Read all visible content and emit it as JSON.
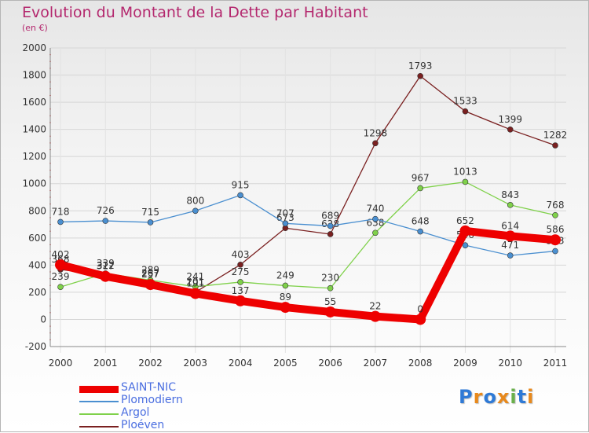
{
  "title": "Evolution du Montant de la Dette par Habitant",
  "subtitle": "(en €)",
  "logo": {
    "text": "Proxiti",
    "colors": [
      "#2f7ad6",
      "#e8891c",
      "#2f7ad6",
      "#e8891c",
      "#6ab04c",
      "#2f7ad6",
      "#e8891c"
    ]
  },
  "chart_data": {
    "type": "line",
    "x": [
      "2000",
      "2001",
      "2002",
      "2003",
      "2004",
      "2005",
      "2006",
      "2007",
      "2008",
      "2009",
      "2010",
      "2011"
    ],
    "ylim": [
      -200,
      2000
    ],
    "yticks": [
      "-200",
      "0",
      "200",
      "400",
      "600",
      "800",
      "1000",
      "1200",
      "1400",
      "1600",
      "1800",
      "2000"
    ],
    "grid": true,
    "legend_position": "bottom-left",
    "series": [
      {
        "name": "Ploéven",
        "color": "#7a2020",
        "values": [
          368,
          322,
          267,
          201,
          403,
          673,
          628,
          1298,
          1793,
          1533,
          1399,
          1282
        ],
        "labels": [
          "368",
          "322",
          "267",
          "201",
          "403",
          "673",
          "628",
          "1298",
          "1793",
          "1533",
          "1399",
          "1282"
        ]
      },
      {
        "name": "Argol",
        "color": "#7fd14a",
        "values": [
          239,
          339,
          289,
          241,
          275,
          249,
          230,
          638,
          967,
          1013,
          843,
          768
        ],
        "labels": [
          "239",
          "339",
          "289",
          "241",
          "275",
          "249",
          "230",
          "638",
          "967",
          "1013",
          "843",
          "768"
        ]
      },
      {
        "name": "Plomodiern",
        "color": "#4a8fd0",
        "values": [
          718,
          726,
          715,
          800,
          915,
          707,
          689,
          740,
          648,
          546,
          471,
          503
        ],
        "labels": [
          "718",
          "726",
          "715",
          "800",
          "915",
          "707",
          "689",
          "740",
          "648",
          "546",
          "471",
          "503"
        ]
      },
      {
        "name": "SAINT-NIC",
        "color": "#ee0000",
        "values": [
          402,
          317,
          257,
          191,
          137,
          89,
          55,
          22,
          0,
          652,
          614,
          586
        ],
        "labels": [
          "402",
          "317",
          "257",
          "191",
          "137",
          "89",
          "55",
          "22",
          "0",
          "652",
          "614",
          "586"
        ]
      }
    ],
    "legend": [
      "SAINT-NIC",
      "Plomodiern",
      "Argol",
      "Ploéven"
    ]
  }
}
